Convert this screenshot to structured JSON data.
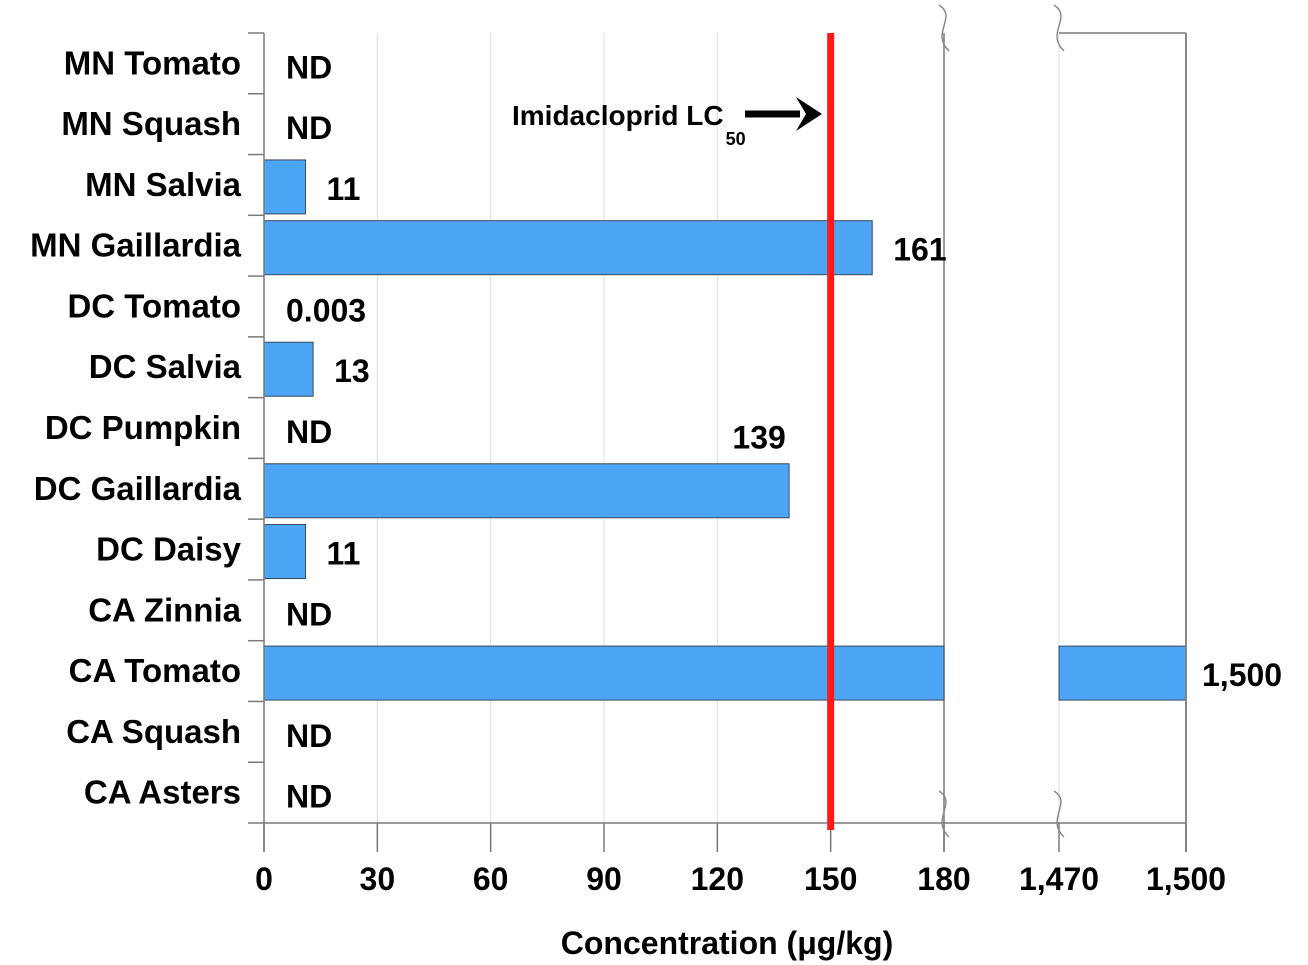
{
  "chart_data": {
    "type": "bar",
    "orientation": "horizontal",
    "title": "",
    "xlabel": "Concentration (μg/kg)",
    "ylabel": "",
    "categories": [
      "MN Tomato",
      "MN Squash",
      "MN Salvia",
      "MN Gaillardia",
      "DC Tomato",
      "DC Salvia",
      "DC Pumpkin",
      "DC Gaillardia",
      "DC Daisy",
      "CA Zinnia",
      "CA Tomato",
      "CA Squash",
      "CA Asters"
    ],
    "values": [
      0,
      0,
      11,
      161,
      0.003,
      13,
      0,
      139,
      11,
      0,
      1500,
      0,
      0
    ],
    "value_labels": [
      "ND",
      "ND",
      "11",
      "161",
      "0.003",
      "13",
      "ND",
      "139",
      "11",
      "ND",
      "1,500",
      "ND",
      "ND"
    ],
    "x_ticks": [
      {
        "value": 0,
        "label": "0"
      },
      {
        "value": 30,
        "label": "30"
      },
      {
        "value": 60,
        "label": "60"
      },
      {
        "value": 90,
        "label": "90"
      },
      {
        "value": 120,
        "label": "120"
      },
      {
        "value": 150,
        "label": "150"
      },
      {
        "value": 180,
        "label": "180"
      },
      {
        "value": 1470,
        "label": "1,470"
      },
      {
        "value": 1500,
        "label": "1,500"
      }
    ],
    "xlim_segments": [
      [
        0,
        180
      ],
      [
        1470,
        1500
      ]
    ],
    "axis_break": true,
    "grid": true,
    "bar_color": "#4da6f5",
    "reference_line": {
      "value": 150,
      "label": "Imidacloprid LC",
      "label_sub": "50",
      "color": "#ff1a1a"
    }
  }
}
